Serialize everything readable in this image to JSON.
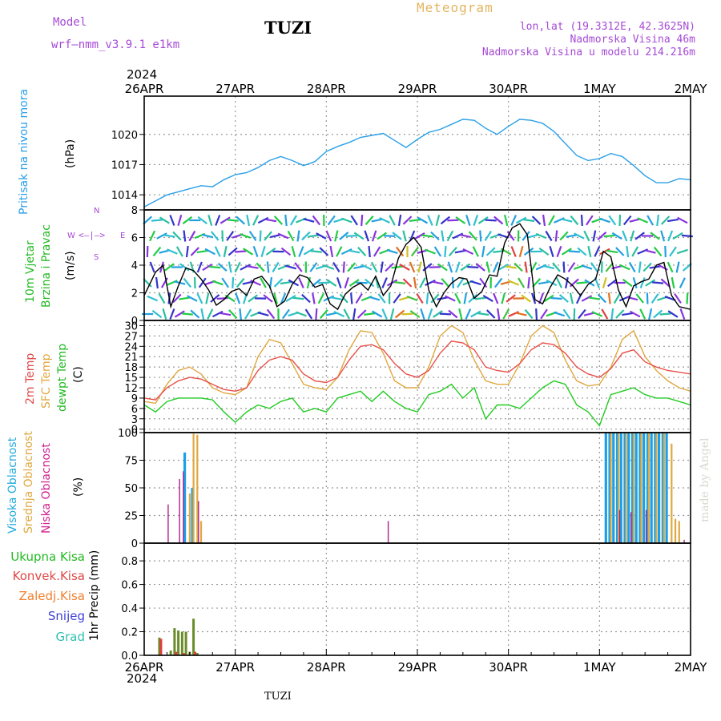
{
  "header": {
    "model_label": "Model",
    "model_name": "wrf—nmm_v3.9.1  e1km",
    "title": "TUZI",
    "product": "Meteogram",
    "lonlat": "lon,lat (19.3312E, 42.3625N)",
    "elevation": "Nadmorska Visina 46m",
    "model_elevation": "Nadmorska Visina u modelu 214.216m"
  },
  "footer": {
    "station": "TUZI",
    "credit": "made by Angel"
  },
  "time_axis": {
    "year_top": "2024",
    "year_bottom": "2024",
    "labels": [
      "26APR",
      "27APR",
      "28APR",
      "29APR",
      "30APR",
      "1MAY",
      "2MAY"
    ]
  },
  "panels": {
    "pressure": {
      "label": "Pritisak na nivou mora",
      "unit": "(hPa)"
    },
    "wind": {
      "label1": "10m Vjetar",
      "label2": "Brzina i Pravac",
      "unit": "(m/s)",
      "compass": {
        "n": "N",
        "w": "W",
        "e": "E",
        "s": "S"
      }
    },
    "temp": {
      "label1": "2m Temp",
      "label2": "SFC Temp",
      "label3": "dewpt Temp",
      "unit": "(C)"
    },
    "cloud": {
      "label1": "Visoka Oblacnost",
      "label2": "Srednja Oblacnost",
      "label3": "Niska Oblacnost",
      "unit": "(%)"
    },
    "precip": {
      "unit": "1hr Precip (mm)",
      "legend": [
        "Ukupna Kisa",
        "Konvek.Kisa",
        "Zaledj.Kisa",
        "Snijeg",
        "Grad"
      ]
    }
  },
  "colors": {
    "pressure": "#2aa0e8",
    "temp2m": "#e8504a",
    "sfc": "#e0a840",
    "dewpt": "#22cc22",
    "high_cloud": "#1aa0e8",
    "mid_cloud": "#e0a840",
    "low_cloud": "#b0208a",
    "precip_total": "#6a8c2a",
    "precip_conv": "#e04040",
    "precip_frz": "#f08030",
    "snow": "#4040d8",
    "hail": "#30c0b0",
    "label_green": "#22bb22",
    "label_red": "#e04848",
    "label_orange": "#e0a840",
    "label_magenta": "#d02090",
    "label_cyan": "#22aadd"
  },
  "chart_data": [
    {
      "type": "line",
      "title": "Pritisak na nivou mora",
      "ylabel": "(hPa)",
      "ylim": [
        1012.5,
        1023.8
      ],
      "yticks": [
        1014,
        1017,
        1020
      ],
      "xlim": [
        0,
        144
      ],
      "series": [
        {
          "name": "Pritisak na nivou mora",
          "x": [
            0,
            3,
            6,
            9,
            12,
            15,
            18,
            21,
            24,
            27,
            30,
            33,
            36,
            39,
            42,
            45,
            48,
            51,
            54,
            57,
            60,
            63,
            66,
            69,
            72,
            75,
            78,
            81,
            84,
            87,
            90,
            93,
            96,
            99,
            102,
            105,
            108,
            111,
            114,
            117,
            120,
            123,
            126,
            129,
            132,
            135,
            138,
            141,
            144
          ],
          "values": [
            1012.8,
            1013.4,
            1014.0,
            1014.3,
            1014.6,
            1014.9,
            1014.8,
            1015.5,
            1016.0,
            1016.2,
            1016.7,
            1017.4,
            1017.8,
            1017.4,
            1016.9,
            1017.3,
            1018.3,
            1018.8,
            1019.2,
            1019.7,
            1019.9,
            1020.1,
            1019.4,
            1018.7,
            1019.5,
            1020.2,
            1020.5,
            1021.0,
            1021.5,
            1021.4,
            1020.6,
            1020.0,
            1020.8,
            1021.5,
            1021.4,
            1021.1,
            1020.3,
            1019.1,
            1017.9,
            1017.4,
            1017.6,
            1018.1,
            1017.8,
            1016.9,
            1015.9,
            1015.2,
            1015.2,
            1015.6,
            1015.5
          ]
        }
      ]
    },
    {
      "type": "line",
      "title": "10m Vjetar Brzina i Pravac",
      "ylabel": "(m/s)",
      "ylim": [
        0,
        8
      ],
      "yticks": [
        0,
        2,
        4,
        6,
        8
      ],
      "xlim": [
        0,
        144
      ],
      "series": [
        {
          "name": "10m Vjetar",
          "x": [
            0,
            3,
            5,
            7,
            9,
            11,
            13,
            15,
            17,
            19,
            21,
            23,
            25,
            27,
            29,
            31,
            33,
            35,
            37,
            39,
            41,
            43,
            45,
            47,
            49,
            51,
            53,
            55,
            57,
            59,
            61,
            63,
            65,
            67,
            69,
            71,
            73,
            75,
            77,
            79,
            81,
            83,
            85,
            87,
            89,
            91,
            93,
            95,
            97,
            99,
            101,
            103,
            105,
            107,
            109,
            111,
            113,
            115,
            117,
            119,
            121,
            123,
            125,
            127,
            129,
            131,
            133,
            135,
            137,
            139,
            141,
            144
          ],
          "values": [
            1.8,
            3.5,
            4.0,
            1.0,
            2.5,
            3.8,
            3.6,
            3.0,
            2.2,
            1.1,
            1.5,
            2.1,
            2.3,
            1.8,
            3.0,
            3.2,
            2.5,
            1.0,
            1.4,
            2.6,
            3.3,
            3.1,
            2.4,
            2.6,
            1.2,
            0.8,
            1.9,
            2.4,
            2.7,
            2.2,
            3.2,
            1.8,
            2.5,
            4.5,
            5.5,
            6.0,
            5.3,
            2.2,
            1.0,
            2.0,
            2.7,
            3.1,
            3.0,
            1.6,
            2.1,
            3.3,
            3.2,
            5.6,
            6.7,
            7.0,
            6.2,
            1.5,
            1.2,
            2.4,
            3.3,
            3.0,
            2.5,
            1.8,
            2.6,
            3.0,
            5.0,
            4.6,
            2.2,
            1.0,
            2.5,
            2.8,
            3.0,
            4.0,
            4.2,
            1.8,
            1.0,
            0.8
          ]
        }
      ]
    },
    {
      "type": "line",
      "title": "Temp",
      "ylabel": "(C)",
      "ylim": [
        -1,
        31.5
      ],
      "yticks": [
        0,
        3,
        6,
        9,
        12,
        15,
        18,
        21,
        24,
        27,
        30
      ],
      "xlim": [
        0,
        144
      ],
      "series": [
        {
          "name": "2m Temp",
          "x": [
            0,
            3,
            6,
            9,
            12,
            15,
            18,
            21,
            24,
            27,
            30,
            33,
            36,
            39,
            42,
            45,
            48,
            51,
            54,
            57,
            60,
            63,
            66,
            69,
            72,
            75,
            78,
            81,
            84,
            87,
            90,
            93,
            96,
            99,
            102,
            105,
            108,
            111,
            114,
            117,
            120,
            123,
            126,
            129,
            132,
            135,
            138,
            141,
            144
          ],
          "values": [
            9,
            8.5,
            12,
            14,
            15,
            14.5,
            13,
            11.5,
            11,
            12,
            17,
            20,
            21,
            20,
            16,
            14,
            13.5,
            15,
            20,
            24,
            24.5,
            23,
            19,
            16,
            15,
            17,
            22,
            25.5,
            25,
            23,
            18,
            17,
            16.5,
            19,
            23,
            25,
            24.5,
            22,
            18,
            16,
            15,
            17.5,
            22,
            23,
            19.5,
            18,
            17,
            16.5,
            16
          ]
        },
        {
          "name": "SFC Temp",
          "x": [
            0,
            3,
            6,
            9,
            12,
            15,
            18,
            21,
            24,
            27,
            30,
            33,
            36,
            39,
            42,
            45,
            48,
            51,
            54,
            57,
            60,
            63,
            66,
            69,
            72,
            75,
            78,
            81,
            84,
            87,
            90,
            93,
            96,
            99,
            102,
            105,
            108,
            111,
            114,
            117,
            120,
            123,
            126,
            129,
            132,
            135,
            138,
            141,
            144
          ],
          "values": [
            8,
            7.5,
            13,
            17,
            18,
            16,
            12,
            10.5,
            10,
            12,
            21,
            26,
            25,
            19,
            13,
            12,
            11.5,
            15,
            23,
            28.5,
            28,
            22,
            14,
            12,
            12,
            18,
            27,
            30,
            28,
            20,
            14,
            13,
            13,
            19,
            27,
            30,
            28,
            20,
            14,
            12.5,
            13,
            18,
            26,
            28.5,
            21,
            17,
            14,
            12,
            11
          ]
        },
        {
          "name": "dewpt Temp",
          "x": [
            0,
            3,
            6,
            9,
            12,
            15,
            18,
            21,
            24,
            27,
            30,
            33,
            36,
            39,
            42,
            45,
            48,
            51,
            54,
            57,
            60,
            63,
            66,
            69,
            72,
            75,
            78,
            81,
            84,
            87,
            90,
            93,
            96,
            99,
            102,
            105,
            108,
            111,
            114,
            117,
            120,
            123,
            126,
            129,
            132,
            135,
            138,
            141,
            144
          ],
          "values": [
            7,
            5,
            8,
            9,
            9,
            9,
            8.5,
            5,
            2,
            5,
            7,
            6,
            8,
            9,
            5,
            6,
            5,
            9,
            10,
            11,
            8,
            11,
            8,
            6,
            5,
            10,
            11,
            13,
            9,
            12,
            3,
            7,
            7,
            6,
            9,
            12,
            14,
            13,
            7,
            5,
            1,
            10,
            11,
            12,
            10,
            9,
            9,
            8,
            7
          ]
        }
      ]
    },
    {
      "type": "bar",
      "title": "Oblacnost",
      "ylabel": "(%)",
      "ylim": [
        0,
        100
      ],
      "yticks": [
        0,
        25,
        50,
        75,
        100
      ],
      "xlim": [
        0,
        144
      ],
      "series": [
        {
          "name": "Visoka Oblacnost",
          "x": [
            11,
            13,
            122,
            123,
            124,
            125,
            126,
            127,
            128,
            129,
            130,
            131,
            132,
            133,
            134,
            135,
            136,
            137,
            138
          ],
          "values": [
            82,
            50,
            100,
            100,
            100,
            100,
            100,
            100,
            100,
            100,
            100,
            100,
            100,
            100,
            100,
            100,
            100,
            100,
            100
          ]
        },
        {
          "name": "Srednja Oblacnost",
          "x": [
            12,
            13,
            14,
            15,
            123,
            125,
            127,
            129,
            131,
            133,
            135,
            137,
            139,
            140,
            141
          ],
          "values": [
            45,
            99,
            98,
            20,
            100,
            100,
            100,
            100,
            100,
            100,
            100,
            100,
            90,
            22,
            20
          ]
        },
        {
          "name": "Niska Oblacnost",
          "x": [
            6,
            9,
            10,
            14,
            64,
            125,
            128,
            132,
            142
          ],
          "values": [
            35,
            58,
            65,
            38,
            20,
            30,
            28,
            30,
            3
          ]
        }
      ]
    },
    {
      "type": "bar",
      "title": "1hr Precip",
      "ylabel": "1hr Precip (mm)",
      "ylim": [
        0,
        0.95
      ],
      "yticks": [
        0,
        0.2,
        0.4,
        0.6,
        0.8
      ],
      "xlim": [
        0,
        144
      ],
      "series": [
        {
          "name": "Ukupna Kisa",
          "x": [
            4,
            7,
            8,
            9,
            10,
            11,
            12,
            13,
            14
          ],
          "values": [
            0.15,
            0.04,
            0.23,
            0.21,
            0.2,
            0.2,
            0.03,
            0.31,
            0.02
          ]
        },
        {
          "name": "Konvek.Kisa",
          "x": [
            4,
            8,
            10,
            13
          ],
          "values": [
            0.14,
            0.03,
            0.02,
            0.03
          ]
        }
      ]
    }
  ]
}
